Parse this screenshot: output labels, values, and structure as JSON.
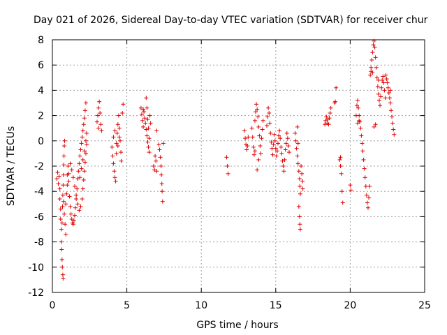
{
  "chart_data": {
    "type": "scatter",
    "title": "Day 021 of 2026, Sidereal Day-to-day VTEC variation (SDTVAR) for receiver chur",
    "xlabel": "GPS time / hours",
    "ylabel": "SDTVAR / TECUs",
    "xlim": [
      0,
      25
    ],
    "ylim": [
      -12,
      8
    ],
    "xticks": [
      0,
      5,
      10,
      15,
      20,
      25
    ],
    "yticks": [
      -12,
      -10,
      -8,
      -6,
      -4,
      -2,
      0,
      2,
      4,
      6,
      8
    ],
    "grid": true,
    "marker": "+",
    "color": "#e00000",
    "series": [
      {
        "name": "SDTVAR",
        "points": [
          [
            0.3,
            -3.0
          ],
          [
            0.35,
            -2.5
          ],
          [
            0.4,
            -3.4
          ],
          [
            0.45,
            -2.8
          ],
          [
            0.5,
            -3.8
          ],
          [
            0.5,
            -4.6
          ],
          [
            0.55,
            -5.4
          ],
          [
            0.55,
            -6.2
          ],
          [
            0.6,
            -7.0
          ],
          [
            0.6,
            -8.0
          ],
          [
            0.62,
            -8.6
          ],
          [
            0.65,
            -9.4
          ],
          [
            0.67,
            -10.0
          ],
          [
            0.7,
            -10.6
          ],
          [
            0.72,
            -10.9
          ],
          [
            0.65,
            -6.5
          ],
          [
            0.68,
            -5.2
          ],
          [
            0.7,
            -4.3
          ],
          [
            0.72,
            -3.5
          ],
          [
            0.74,
            -2.7
          ],
          [
            0.76,
            -1.9
          ],
          [
            0.78,
            -1.2
          ],
          [
            0.8,
            -0.4
          ],
          [
            0.82,
            0.0
          ],
          [
            0.75,
            -4.8
          ],
          [
            0.8,
            -5.8
          ],
          [
            0.85,
            -6.6
          ],
          [
            0.9,
            -7.4
          ],
          [
            0.9,
            -5.0
          ],
          [
            0.95,
            -4.2
          ],
          [
            1.0,
            -3.5
          ],
          [
            1.0,
            -2.7
          ],
          [
            1.05,
            -2.0
          ],
          [
            1.1,
            -2.6
          ],
          [
            1.1,
            -3.2
          ],
          [
            1.15,
            -4.4
          ],
          [
            1.2,
            -5.2
          ],
          [
            1.25,
            -5.8
          ],
          [
            1.3,
            -6.2
          ],
          [
            1.35,
            -6.5
          ],
          [
            1.4,
            -6.6
          ],
          [
            1.45,
            -6.3
          ],
          [
            1.5,
            -5.9
          ],
          [
            1.55,
            -5.3
          ],
          [
            1.6,
            -4.6
          ],
          [
            1.65,
            -3.8
          ],
          [
            1.7,
            -3.0
          ],
          [
            1.75,
            -2.4
          ],
          [
            1.8,
            -1.8
          ],
          [
            1.85,
            -1.2
          ],
          [
            1.9,
            -0.7
          ],
          [
            1.95,
            -0.2
          ],
          [
            2.0,
            0.3
          ],
          [
            2.05,
            0.8
          ],
          [
            2.1,
            1.3
          ],
          [
            2.15,
            1.8
          ],
          [
            2.2,
            2.4
          ],
          [
            2.25,
            3.0
          ],
          [
            1.2,
            -1.8
          ],
          [
            1.3,
            -2.3
          ],
          [
            1.4,
            -2.9
          ],
          [
            1.5,
            -3.6
          ],
          [
            1.6,
            -4.3
          ],
          [
            1.7,
            -5.0
          ],
          [
            1.8,
            -5.5
          ],
          [
            1.9,
            -5.2
          ],
          [
            2.0,
            -4.6
          ],
          [
            2.05,
            -3.8
          ],
          [
            2.1,
            -3.1
          ],
          [
            2.15,
            -2.4
          ],
          [
            2.2,
            -1.7
          ],
          [
            2.25,
            -1.0
          ],
          [
            2.3,
            -0.3
          ],
          [
            1.85,
            -2.9
          ],
          [
            1.95,
            -2.2
          ],
          [
            2.05,
            -1.5
          ],
          [
            2.15,
            -0.8
          ],
          [
            2.25,
            0.0
          ],
          [
            2.3,
            0.6
          ],
          [
            3.0,
            1.5
          ],
          [
            3.05,
            2.0
          ],
          [
            3.1,
            2.6
          ],
          [
            3.15,
            3.1
          ],
          [
            3.2,
            2.2
          ],
          [
            3.25,
            1.3
          ],
          [
            3.3,
            0.8
          ],
          [
            3.1,
            1.0
          ],
          [
            4.0,
            -0.5
          ],
          [
            4.05,
            -1.2
          ],
          [
            4.1,
            -1.8
          ],
          [
            4.15,
            -2.4
          ],
          [
            4.2,
            -2.9
          ],
          [
            4.25,
            -3.2
          ],
          [
            4.1,
            0.3
          ],
          [
            4.2,
            0.8
          ],
          [
            4.3,
            -0.2
          ],
          [
            4.35,
            0.6
          ],
          [
            4.4,
            1.3
          ],
          [
            4.45,
            2.0
          ],
          [
            4.5,
            1.0
          ],
          [
            4.55,
            0.0
          ],
          [
            4.6,
            -0.9
          ],
          [
            4.62,
            -1.6
          ],
          [
            4.3,
            -1.0
          ],
          [
            4.4,
            -0.4
          ],
          [
            4.7,
            2.2
          ],
          [
            4.75,
            2.9
          ],
          [
            4.5,
            0.3
          ],
          [
            5.95,
            2.6
          ],
          [
            6.0,
            2.1
          ],
          [
            6.05,
            1.6
          ],
          [
            6.1,
            1.1
          ],
          [
            6.15,
            2.3
          ],
          [
            6.2,
            1.8
          ],
          [
            6.25,
            1.4
          ],
          [
            6.3,
            0.9
          ],
          [
            6.35,
            0.4
          ],
          [
            6.4,
            -0.1
          ],
          [
            6.45,
            -0.5
          ],
          [
            6.5,
            -0.9
          ],
          [
            6.3,
            3.4
          ],
          [
            6.35,
            2.6
          ],
          [
            6.4,
            1.7
          ],
          [
            6.45,
            1.0
          ],
          [
            6.5,
            0.2
          ],
          [
            6.55,
            2.0
          ],
          [
            6.6,
            1.4
          ],
          [
            6.1,
            2.5
          ],
          [
            6.8,
            -2.0
          ],
          [
            6.85,
            -2.3
          ],
          [
            6.9,
            -1.2
          ],
          [
            6.95,
            -1.6
          ],
          [
            7.0,
            -2.4
          ],
          [
            7.0,
            0.8
          ],
          [
            7.15,
            -0.3
          ],
          [
            7.2,
            -0.7
          ],
          [
            7.25,
            -1.3
          ],
          [
            7.3,
            -2.0
          ],
          [
            7.32,
            -2.7
          ],
          [
            7.35,
            -3.4
          ],
          [
            7.37,
            -4.0
          ],
          [
            7.4,
            -4.8
          ],
          [
            7.45,
            -0.2
          ],
          [
            11.7,
            -1.3
          ],
          [
            11.75,
            -2.0
          ],
          [
            11.8,
            -2.6
          ],
          [
            12.9,
            0.8
          ],
          [
            12.95,
            0.2
          ],
          [
            13.0,
            -0.3
          ],
          [
            13.05,
            -0.7
          ],
          [
            13.1,
            -0.4
          ],
          [
            13.15,
            0.3
          ],
          [
            13.4,
            1.0
          ],
          [
            13.45,
            0.3
          ],
          [
            13.5,
            -0.5
          ],
          [
            13.55,
            -1.1
          ],
          [
            13.6,
            -0.8
          ],
          [
            13.6,
            1.6
          ],
          [
            13.65,
            2.3
          ],
          [
            13.7,
            2.9
          ],
          [
            13.75,
            2.5
          ],
          [
            13.8,
            1.9
          ],
          [
            13.85,
            1.1
          ],
          [
            13.9,
            0.4
          ],
          [
            13.95,
            -0.4
          ],
          [
            14.0,
            -1.0
          ],
          [
            14.05,
            0.2
          ],
          [
            13.75,
            -2.3
          ],
          [
            13.85,
            -1.5
          ],
          [
            14.1,
            0.9
          ],
          [
            14.15,
            1.6
          ],
          [
            14.4,
            1.2
          ],
          [
            14.45,
            1.9
          ],
          [
            14.5,
            2.6
          ],
          [
            14.55,
            2.2
          ],
          [
            14.6,
            1.4
          ],
          [
            14.65,
            0.6
          ],
          [
            14.7,
            -0.1
          ],
          [
            14.75,
            -0.6
          ],
          [
            14.8,
            -1.1
          ],
          [
            14.85,
            -0.3
          ],
          [
            14.9,
            0.5
          ],
          [
            14.95,
            0.0
          ],
          [
            15.0,
            -0.6
          ],
          [
            15.05,
            -1.2
          ],
          [
            15.1,
            -0.8
          ],
          [
            15.15,
            -0.2
          ],
          [
            15.2,
            0.4
          ],
          [
            15.25,
            0.8
          ],
          [
            15.3,
            0.2
          ],
          [
            15.35,
            -0.5
          ],
          [
            15.4,
            -1.0
          ],
          [
            15.45,
            -1.6
          ],
          [
            15.5,
            -2.0
          ],
          [
            15.55,
            -2.4
          ],
          [
            15.6,
            -1.5
          ],
          [
            15.65,
            -0.7
          ],
          [
            15.7,
            -0.2
          ],
          [
            15.75,
            0.6
          ],
          [
            15.8,
            0.2
          ],
          [
            15.85,
            -0.4
          ],
          [
            15.9,
            -0.9
          ],
          [
            16.3,
            0.6
          ],
          [
            16.35,
            0.0
          ],
          [
            16.4,
            -0.6
          ],
          [
            16.45,
            -1.2
          ],
          [
            16.5,
            -1.8
          ],
          [
            16.55,
            -2.4
          ],
          [
            16.6,
            -3.0
          ],
          [
            16.62,
            -3.6
          ],
          [
            16.65,
            -4.2
          ],
          [
            16.55,
            -5.2
          ],
          [
            16.6,
            -6.0
          ],
          [
            16.62,
            -6.6
          ],
          [
            16.65,
            -7.0
          ],
          [
            16.7,
            -2.0
          ],
          [
            16.75,
            -2.6
          ],
          [
            16.8,
            -3.2
          ],
          [
            16.82,
            -3.8
          ],
          [
            16.5,
            -0.2
          ],
          [
            16.45,
            1.1
          ],
          [
            18.3,
            1.3
          ],
          [
            18.35,
            1.6
          ],
          [
            18.4,
            1.9
          ],
          [
            18.45,
            1.4
          ],
          [
            18.5,
            1.7
          ],
          [
            18.55,
            1.3
          ],
          [
            18.6,
            1.8
          ],
          [
            18.65,
            2.2
          ],
          [
            18.7,
            2.6
          ],
          [
            18.95,
            3.0
          ],
          [
            19.0,
            3.1
          ],
          [
            19.05,
            4.2
          ],
          [
            19.3,
            -1.5
          ],
          [
            19.35,
            -2.0
          ],
          [
            19.4,
            -2.6
          ],
          [
            19.45,
            -4.0
          ],
          [
            19.5,
            -4.9
          ],
          [
            19.35,
            -1.3
          ],
          [
            20.0,
            -3.5
          ],
          [
            20.05,
            -3.9
          ],
          [
            20.4,
            2.0
          ],
          [
            20.45,
            2.8
          ],
          [
            20.5,
            3.2
          ],
          [
            20.55,
            2.6
          ],
          [
            20.6,
            2.0
          ],
          [
            20.65,
            1.5
          ],
          [
            20.7,
            1.0
          ],
          [
            20.75,
            0.4
          ],
          [
            20.8,
            -0.2
          ],
          [
            20.85,
            -0.8
          ],
          [
            20.9,
            -1.5
          ],
          [
            20.95,
            -2.2
          ],
          [
            21.0,
            -2.9
          ],
          [
            21.05,
            -3.6
          ],
          [
            21.1,
            -4.3
          ],
          [
            21.15,
            -4.9
          ],
          [
            21.2,
            -5.3
          ],
          [
            21.25,
            -4.5
          ],
          [
            21.3,
            -3.6
          ],
          [
            20.6,
            1.6
          ],
          [
            20.5,
            1.4
          ],
          [
            21.35,
            5.2
          ],
          [
            21.4,
            5.8
          ],
          [
            21.45,
            6.4
          ],
          [
            21.5,
            7.0
          ],
          [
            21.55,
            7.6
          ],
          [
            21.6,
            7.9
          ],
          [
            21.65,
            7.4
          ],
          [
            21.7,
            6.6
          ],
          [
            21.75,
            5.8
          ],
          [
            21.8,
            5.0
          ],
          [
            21.85,
            4.3
          ],
          [
            21.9,
            3.7
          ],
          [
            21.95,
            3.2
          ],
          [
            22.0,
            2.8
          ],
          [
            22.05,
            3.5
          ],
          [
            22.1,
            4.2
          ],
          [
            22.15,
            4.8
          ],
          [
            22.2,
            5.1
          ],
          [
            22.25,
            4.6
          ],
          [
            22.3,
            4.0
          ],
          [
            22.35,
            3.4
          ],
          [
            21.4,
            5.5
          ],
          [
            21.5,
            5.4
          ],
          [
            21.6,
            1.1
          ],
          [
            21.7,
            1.3
          ],
          [
            21.9,
            4.8
          ],
          [
            22.4,
            5.2
          ],
          [
            22.45,
            4.9
          ],
          [
            22.5,
            4.6
          ],
          [
            22.55,
            4.2
          ],
          [
            22.6,
            3.8
          ],
          [
            22.65,
            3.4
          ],
          [
            22.7,
            3.0
          ],
          [
            22.75,
            2.4
          ],
          [
            22.8,
            1.9
          ],
          [
            22.85,
            1.4
          ],
          [
            22.9,
            0.9
          ],
          [
            22.95,
            0.5
          ],
          [
            22.7,
            4.0
          ]
        ]
      }
    ]
  }
}
